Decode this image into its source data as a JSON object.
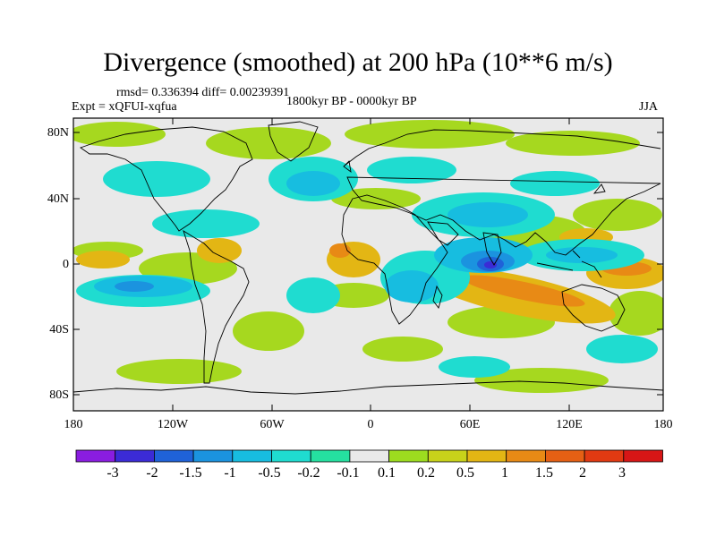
{
  "title": "Divergence (smoothed) at 200 hPa (10**6 m/s)",
  "stats": "rmsd= 0.336394  diff= 0.00239391",
  "experiment": "Expt = xQFUI-xqfua",
  "period": "1800kyr BP - 0000kyr BP",
  "season": "JJA",
  "lat_labels": [
    "80N",
    "40N",
    "0",
    "40S",
    "80S"
  ],
  "lon_labels": [
    "180",
    "120W",
    "60W",
    "0",
    "60E",
    "120E",
    "180"
  ],
  "colorbar": {
    "labels": [
      "-3",
      "-2",
      "-1.5",
      "-1",
      "-0.5",
      "-0.2",
      "-0.1",
      "0.1",
      "0.2",
      "0.5",
      "1",
      "1.5",
      "2",
      "3"
    ],
    "colors": [
      "#8a1de0",
      "#3b2bd6",
      "#1f62d8",
      "#1b93df",
      "#17bde0",
      "#1fdcd0",
      "#25e0a0",
      "#e9e9e9",
      "#9ddc1f",
      "#c8d21a",
      "#e3b614",
      "#e88a15",
      "#e56014",
      "#e13a12",
      "#d71616"
    ]
  }
}
